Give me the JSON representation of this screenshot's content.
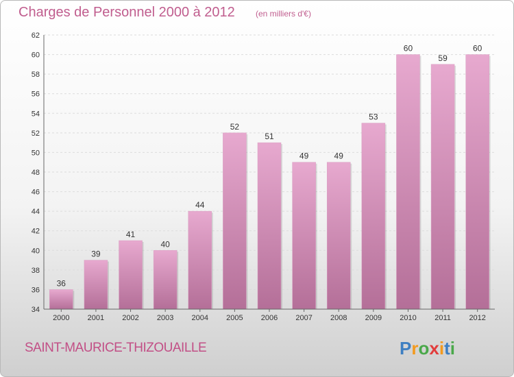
{
  "header": {
    "title": "Charges de Personnel 2000 à 2012",
    "subtitle": "(en milliers d'€)"
  },
  "footer": {
    "place": "SAINT-MAURICE-THIZOUAILLE",
    "logo_text": "Proxiti"
  },
  "colors": {
    "accent": "#c05d8e",
    "bar_light": "#e7a9cf",
    "bar_dark": "#b46f98"
  },
  "chart_data": {
    "type": "bar",
    "title": "Charges de Personnel 2000 à 2012",
    "subtitle": "(en milliers d'€)",
    "categories": [
      "2000",
      "2001",
      "2002",
      "2003",
      "2004",
      "2005",
      "2006",
      "2007",
      "2008",
      "2009",
      "2010",
      "2011",
      "2012"
    ],
    "values": [
      36,
      39,
      41,
      40,
      44,
      52,
      51,
      49,
      49,
      53,
      60,
      59,
      60
    ],
    "ylim": [
      34,
      62
    ],
    "yticks": [
      34,
      36,
      38,
      40,
      42,
      44,
      46,
      48,
      50,
      52,
      54,
      56,
      58,
      60,
      62
    ],
    "grid": true
  }
}
